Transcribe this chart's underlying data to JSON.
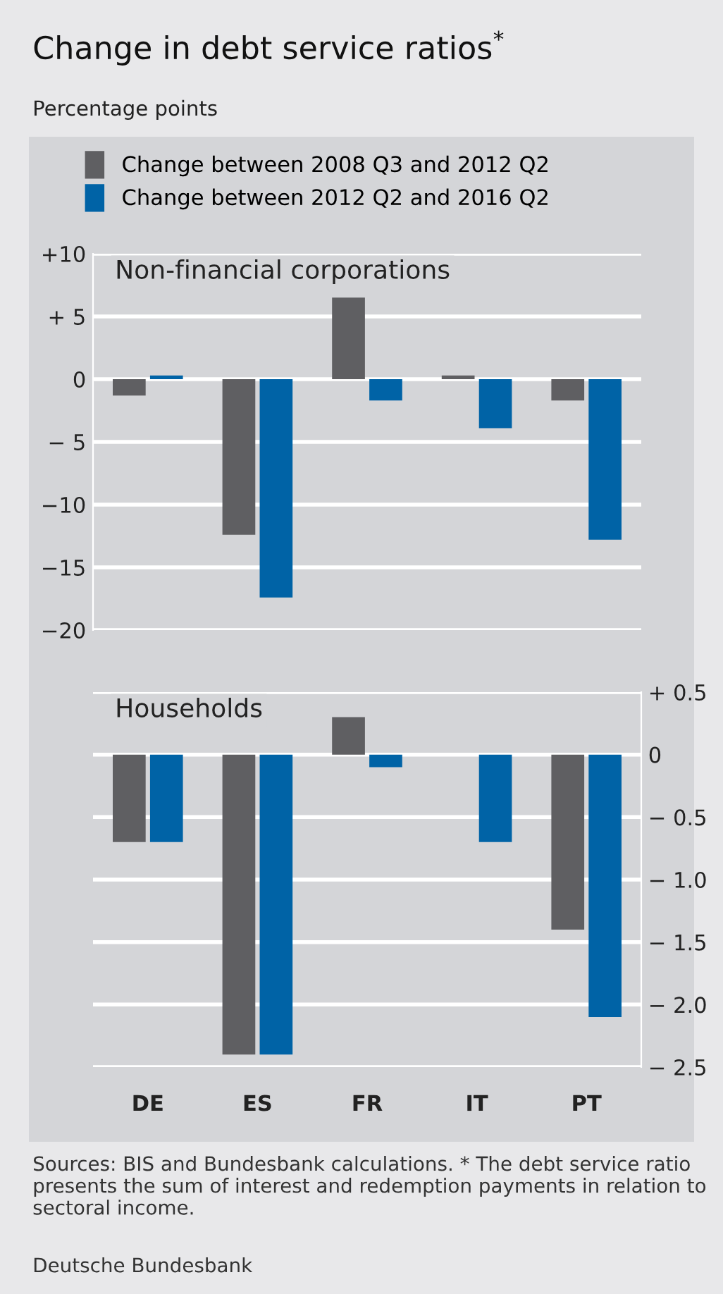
{
  "chart_data": [
    {
      "type": "other",
      "title": "Change in debt service ratios$^{*}$",
      "subtitle": "Percentage points",
      "annotations": [
        "Sources: BIS and Bundesbank calculations. * The debt service ratio presents the sum of interest and redemption payments in relation to sectoral income.",
        "Deutsche Bundesbank"
      ]
    },
    {
      "type": "bar",
      "title": "Non-financial corporations",
      "categories": [
        null,
        null,
        null,
        null,
        null
      ],
      "series": [
        {
          "name": "Change between 2008 Q3 and 2012 Q2",
          "color": "#5f5f62",
          "values": [
            -1.3,
            -12.4,
            6.5,
            0.3,
            -1.7
          ]
        },
        {
          "name": "Change between 2012 Q2 and 2016 Q2",
          "color": "#0063a6",
          "values": [
            0.3,
            -17.4,
            -1.7,
            -3.9,
            -12.8
          ]
        }
      ],
      "ylim": [
        -20,
        10
      ],
      "yticks": [
        {
          "value": -20,
          "label": "−20"
        },
        {
          "value": -15,
          "label": "−15"
        },
        {
          "value": -10,
          "label": "−10"
        },
        {
          "value": -5,
          "label": "− 5"
        },
        0,
        {
          "value": 5,
          "label": "+ 5"
        },
        {
          "value": 10,
          "label": "+10"
        }
      ],
      "grid": "y",
      "legend": "top left",
      "tick_labels": "y"
    },
    {
      "type": "bar",
      "title": "Households",
      "categories": [
        "DE",
        "ES",
        "FR",
        "IT",
        "PT"
      ],
      "series": [
        {
          "color": "#5f5f62",
          "values": [
            -0.7,
            -2.4,
            0.3,
            0,
            -1.4
          ]
        },
        {
          "color": "#0063a6",
          "values": [
            -0.7,
            -2.4,
            -0.1,
            -0.7,
            -2.1
          ]
        }
      ],
      "ylim": [
        -2.5,
        0.5
      ],
      "yticks": [
        {
          "value": -2.5,
          "label": "− 2.5"
        },
        {
          "value": -2.0,
          "label": "− 2.0"
        },
        {
          "value": -1.5,
          "label": "− 1.5"
        },
        {
          "value": -1.0,
          "label": "− 1.0"
        },
        {
          "value": -0.5,
          "label": "− 0.5"
        },
        0,
        {
          "value": 0.5,
          "label": "+ 0.5"
        }
      ],
      "grid": "y"
    }
  ]
}
